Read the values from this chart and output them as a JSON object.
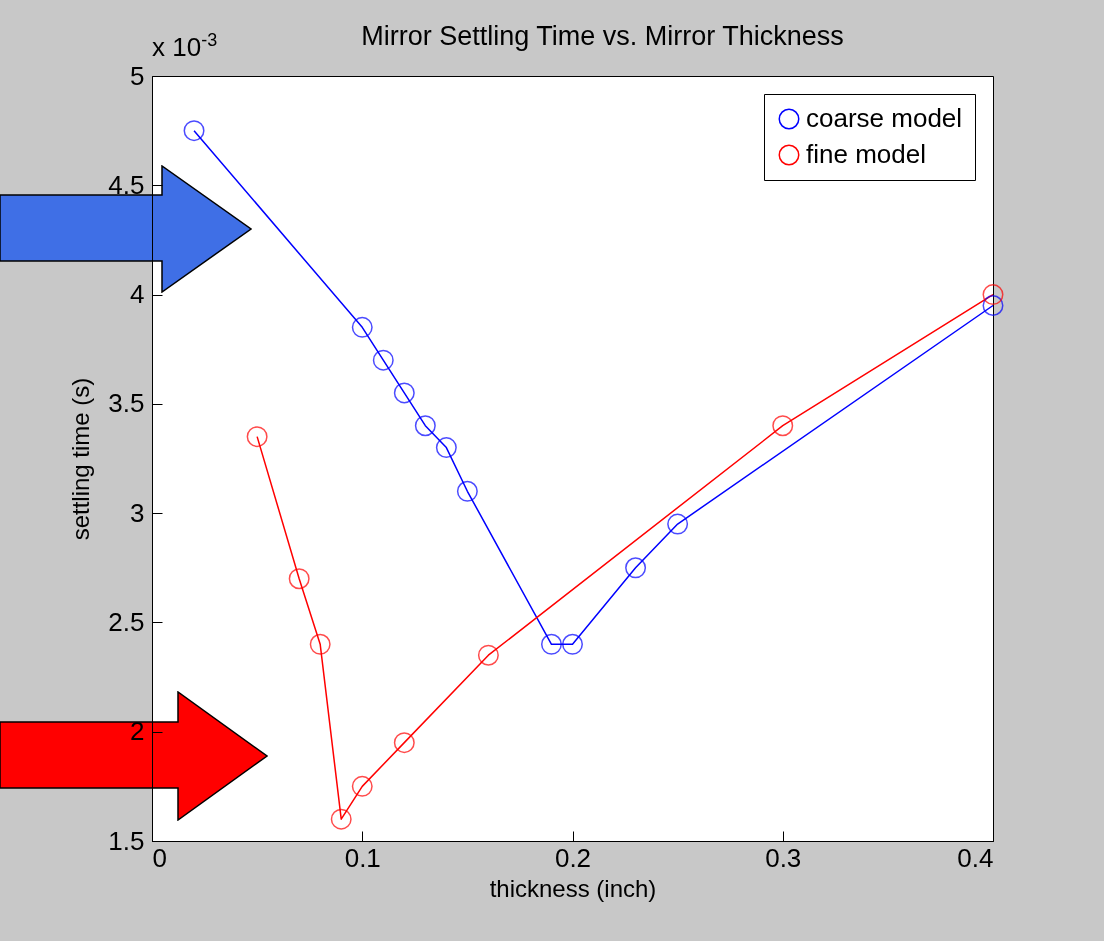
{
  "chart_data": {
    "type": "line",
    "title": "Mirror Settling Time vs. Mirror Thickness",
    "xlabel": "thickness (inch)",
    "ylabel": "settling time (s)",
    "annotations": [
      "x 10$^{-3}$"
    ],
    "series": [
      {
        "name": "coarse model",
        "color": "#0000ff",
        "x": [
          0.02,
          0.1,
          0.11,
          0.12,
          0.13,
          0.14,
          0.15,
          0.19,
          0.2,
          0.23,
          0.25,
          0.4
        ],
        "values": [
          4.75,
          3.85,
          3.7,
          3.55,
          3.4,
          3.3,
          3.1,
          2.4,
          2.4,
          2.75,
          2.95,
          3.95
        ]
      },
      {
        "name": "fine model",
        "color": "#ff0000",
        "x": [
          0.05,
          0.07,
          0.08,
          0.09,
          0.1,
          0.12,
          0.16,
          0.3,
          0.4
        ],
        "values": [
          3.35,
          2.7,
          2.4,
          1.6,
          1.75,
          1.95,
          2.35,
          3.4,
          4.0
        ]
      }
    ],
    "xlim": [
      0,
      0.4
    ],
    "xticks": [
      0,
      0.1,
      0.2,
      0.3,
      0.4
    ],
    "ylim": [
      1.5,
      5
    ],
    "yticks": [
      1.5,
      2,
      2.5,
      3,
      3.5,
      4,
      4.5,
      5
    ],
    "grid": false,
    "legend": "top right",
    "marker": "circle",
    "line_style": "solid"
  }
}
